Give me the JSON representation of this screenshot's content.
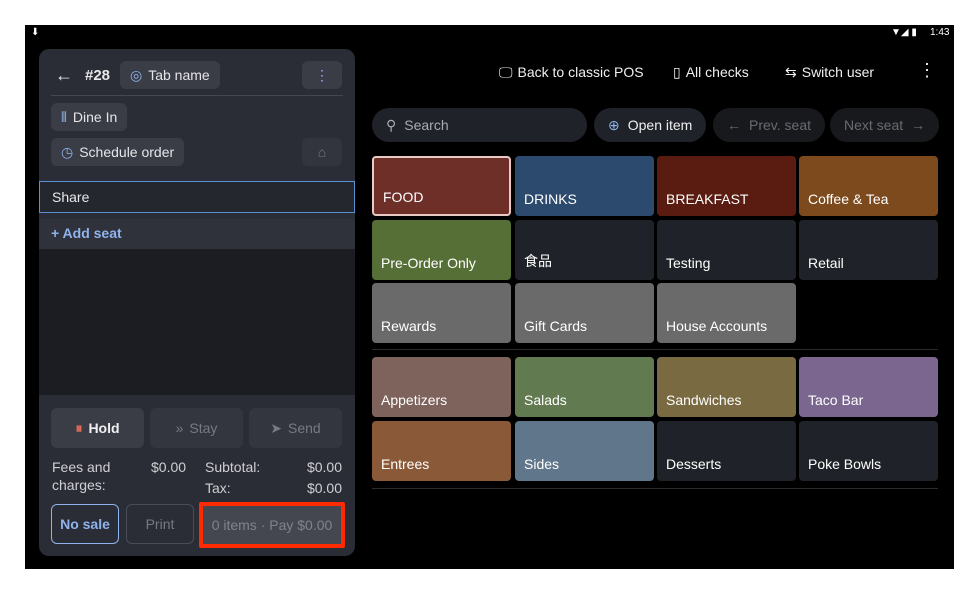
{
  "status_bar": {
    "time": "1:43"
  },
  "order": {
    "number": "#28",
    "tab_name": "Tab name",
    "dine_in": "Dine In",
    "schedule": "Schedule order",
    "seat": "Share",
    "add_seat": "+ Add seat"
  },
  "actions": {
    "hold": "Hold",
    "stay": "Stay",
    "send": "Send"
  },
  "totals": {
    "fees_label": "Fees and charges:",
    "fees": "$0.00",
    "subtotal_label": "Subtotal:",
    "subtotal": "$0.00",
    "tax_label": "Tax:",
    "tax": "$0.00"
  },
  "footer": {
    "no_sale": "No sale",
    "print": "Print",
    "pay": "0 items · Pay $0.00"
  },
  "toolbar": {
    "classic": "Back to classic POS",
    "checks": "All checks",
    "switch": "Switch user"
  },
  "search": {
    "placeholder": "Search",
    "open_item": "Open item",
    "prev_seat": "Prev. seat",
    "next_seat": "Next seat"
  },
  "categories": [
    {
      "label": "FOOD",
      "color": "#6e2f29"
    },
    {
      "label": "DRINKS",
      "color": "#2c4a6e"
    },
    {
      "label": "BREAKFAST",
      "color": "#5a1c10"
    },
    {
      "label": "Coffee & Tea",
      "color": "#7c4a1c"
    },
    {
      "label": "Pre-Order Only",
      "color": "#566f37"
    },
    {
      "label": "食品",
      "color": "#1f2228"
    },
    {
      "label": "Testing",
      "color": "#1f2228"
    },
    {
      "label": "Retail",
      "color": "#1f2228"
    },
    {
      "label": "Rewards",
      "color": "#6a6a6a"
    },
    {
      "label": "Gift Cards",
      "color": "#6a6a6a"
    },
    {
      "label": "House Accounts",
      "color": "#6a6a6a"
    }
  ],
  "subcategories": [
    {
      "label": "Appetizers",
      "color": "#7e625c"
    },
    {
      "label": "Salads",
      "color": "#627a50"
    },
    {
      "label": "Sandwiches",
      "color": "#7a6a42"
    },
    {
      "label": "Taco Bar",
      "color": "#7a668f"
    },
    {
      "label": "Entrees",
      "color": "#8a5a38"
    },
    {
      "label": "Sides",
      "color": "#60768a"
    },
    {
      "label": "Desserts",
      "color": "#1f2228"
    },
    {
      "label": "Poke Bowls",
      "color": "#1f2228"
    }
  ]
}
